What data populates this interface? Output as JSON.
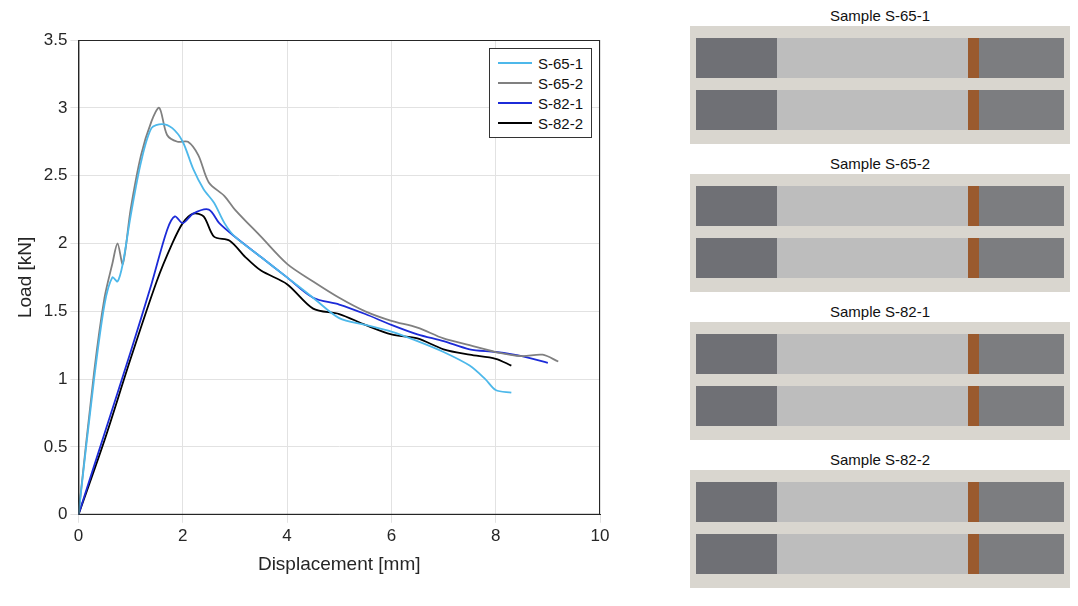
{
  "chart_data": {
    "type": "line",
    "xlabel": "Displacement [mm]",
    "ylabel": "Load [kN]",
    "xlim": [
      0,
      10
    ],
    "xticks": [
      0,
      2,
      4,
      6,
      8,
      10
    ],
    "ylim": [
      0,
      3.5
    ],
    "yticks": [
      0,
      0.5,
      1,
      1.5,
      2,
      2.5,
      3,
      3.5
    ],
    "grid": true,
    "legend": "upper right",
    "series": [
      {
        "name": "S-65-1",
        "color": "#4db8ea",
        "x": [
          0,
          0.3,
          0.5,
          0.65,
          0.75,
          0.85,
          1.0,
          1.2,
          1.4,
          1.6,
          1.8,
          2.0,
          2.2,
          2.4,
          2.6,
          2.8,
          3.0,
          3.5,
          4.0,
          4.5,
          5.0,
          5.5,
          6.0,
          6.5,
          7.0,
          7.5,
          7.8,
          8.0,
          8.3
        ],
        "values": [
          0,
          1.0,
          1.55,
          1.75,
          1.72,
          1.85,
          2.2,
          2.6,
          2.85,
          2.88,
          2.85,
          2.75,
          2.55,
          2.4,
          2.3,
          2.15,
          2.05,
          1.9,
          1.75,
          1.6,
          1.45,
          1.4,
          1.35,
          1.28,
          1.2,
          1.1,
          1.0,
          0.92,
          0.9
        ]
      },
      {
        "name": "S-65-2",
        "color": "#808080",
        "x": [
          0,
          0.3,
          0.5,
          0.65,
          0.75,
          0.85,
          1.0,
          1.2,
          1.4,
          1.55,
          1.7,
          1.9,
          2.1,
          2.3,
          2.5,
          2.8,
          3.0,
          3.5,
          4.0,
          4.5,
          5.0,
          5.5,
          6.0,
          6.5,
          7.0,
          7.5,
          8.0,
          8.5,
          8.9,
          9.2
        ],
        "values": [
          0,
          1.05,
          1.6,
          1.85,
          2.0,
          1.85,
          2.25,
          2.65,
          2.9,
          3.0,
          2.8,
          2.75,
          2.75,
          2.65,
          2.45,
          2.35,
          2.25,
          2.05,
          1.85,
          1.72,
          1.6,
          1.5,
          1.43,
          1.38,
          1.3,
          1.25,
          1.2,
          1.17,
          1.18,
          1.13
        ]
      },
      {
        "name": "S-82-1",
        "color": "#1c2bd8",
        "x": [
          0,
          0.5,
          1.0,
          1.4,
          1.7,
          1.85,
          2.0,
          2.2,
          2.5,
          2.7,
          3.0,
          3.5,
          4.0,
          4.5,
          5.0,
          5.5,
          6.0,
          6.5,
          7.0,
          7.5,
          8.0,
          8.5,
          9.0
        ],
        "values": [
          0,
          0.6,
          1.2,
          1.7,
          2.1,
          2.2,
          2.15,
          2.22,
          2.25,
          2.15,
          2.05,
          1.9,
          1.75,
          1.6,
          1.55,
          1.48,
          1.4,
          1.33,
          1.28,
          1.22,
          1.2,
          1.17,
          1.12
        ]
      },
      {
        "name": "S-82-2",
        "color": "#000000",
        "x": [
          0,
          0.5,
          1.0,
          1.5,
          1.8,
          2.0,
          2.2,
          2.4,
          2.6,
          2.9,
          3.2,
          3.5,
          4.0,
          4.5,
          5.0,
          5.5,
          6.0,
          6.5,
          7.0,
          7.5,
          8.0,
          8.3
        ],
        "values": [
          0,
          0.55,
          1.15,
          1.72,
          2.0,
          2.15,
          2.22,
          2.2,
          2.05,
          2.02,
          1.9,
          1.8,
          1.7,
          1.52,
          1.48,
          1.4,
          1.33,
          1.3,
          1.22,
          1.18,
          1.15,
          1.1
        ]
      }
    ]
  },
  "photos": [
    {
      "title": "Sample S-65-1"
    },
    {
      "title": "Sample S-65-2"
    },
    {
      "title": "Sample S-82-1"
    },
    {
      "title": "Sample S-82-2"
    }
  ]
}
